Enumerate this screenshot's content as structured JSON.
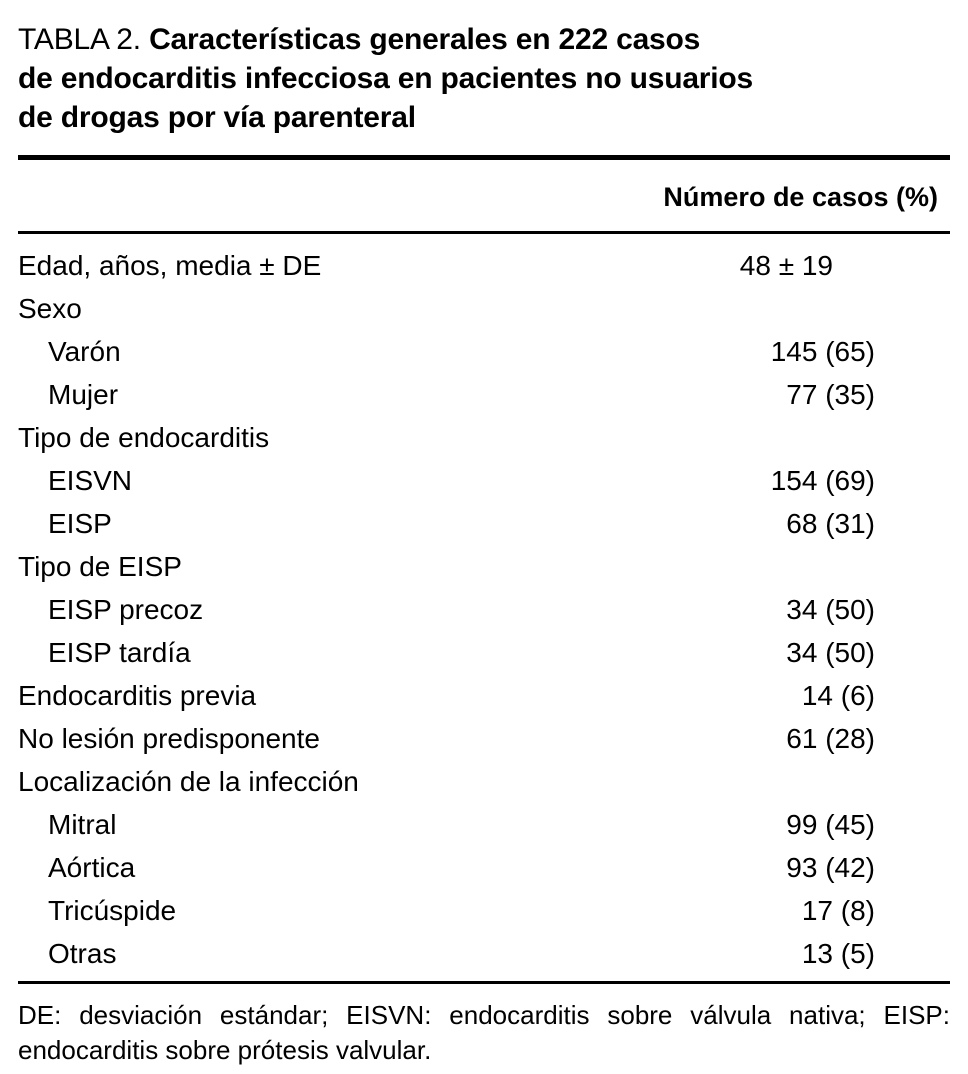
{
  "colors": {
    "background": "#ffffff",
    "text": "#000000",
    "rule": "#000000"
  },
  "table": {
    "label": "TABLA 2.",
    "title_lines": [
      "Características generales en 222 casos",
      "de endocarditis infecciosa en pacientes no usuarios",
      "de drogas por vía parenteral"
    ],
    "column_header": "Número de casos (%)",
    "rows": [
      {
        "label": "Edad, años, media ± DE",
        "value": "48 ± 19",
        "indent": 0
      },
      {
        "label": "Sexo",
        "value": "",
        "indent": 0
      },
      {
        "label": "Varón",
        "value": "145 (65)",
        "indent": 1
      },
      {
        "label": "Mujer",
        "value": "77 (35)",
        "indent": 1
      },
      {
        "label": "Tipo de endocarditis",
        "value": "",
        "indent": 0
      },
      {
        "label": "EISVN",
        "value": "154 (69)",
        "indent": 1
      },
      {
        "label": "EISP",
        "value": "68 (31)",
        "indent": 1
      },
      {
        "label": "Tipo de EISP",
        "value": "",
        "indent": 0
      },
      {
        "label": "EISP precoz",
        "value": "34 (50)",
        "indent": 1
      },
      {
        "label": "EISP tardía",
        "value": "34 (50)",
        "indent": 1
      },
      {
        "label": "Endocarditis previa",
        "value": "14 (6)",
        "indent": 0
      },
      {
        "label": "No lesión predisponente",
        "value": "61 (28)",
        "indent": 0
      },
      {
        "label": "Localización de la infección",
        "value": "",
        "indent": 0
      },
      {
        "label": "Mitral",
        "value": "99 (45)",
        "indent": 1
      },
      {
        "label": "Aórtica",
        "value": "93 (42)",
        "indent": 1
      },
      {
        "label": "Tricúspide",
        "value": "17 (8)",
        "indent": 1
      },
      {
        "label": "Otras",
        "value": "13 (5)",
        "indent": 1
      }
    ],
    "footnote": "DE: desviación estándar; EISVN: endocarditis sobre válvula nativa; EISP: endocarditis sobre prótesis valvular."
  }
}
